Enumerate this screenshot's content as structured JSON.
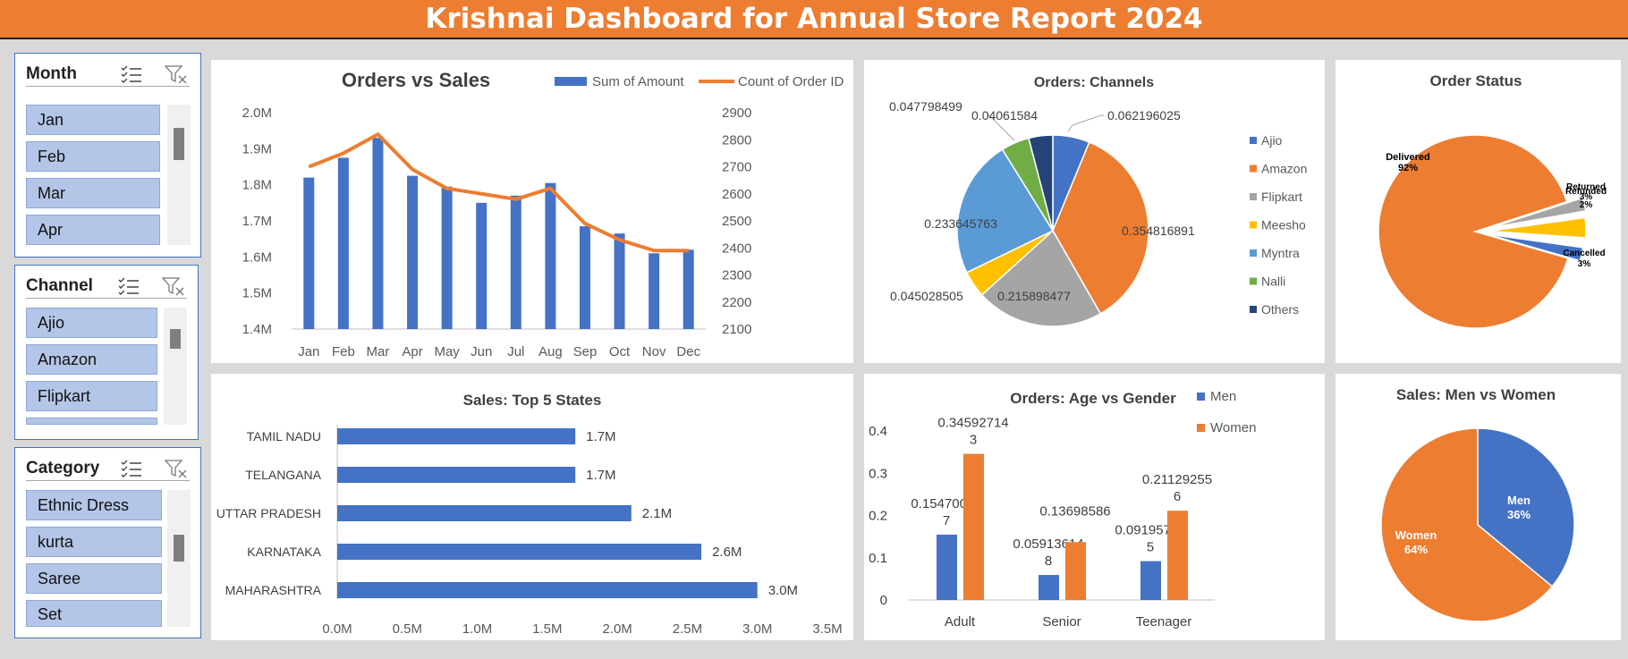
{
  "banner": {
    "title": "Krishnai Dashboard for Annual Store Report 2024"
  },
  "slicers": {
    "month": {
      "title": "Month",
      "items": [
        "Jan",
        "Feb",
        "Mar",
        "Apr"
      ]
    },
    "channel": {
      "title": "Channel",
      "items": [
        "Ajio",
        "Amazon",
        "Flipkart"
      ]
    },
    "category": {
      "title": "Category",
      "items": [
        "Ethnic Dress",
        "kurta",
        "Saree",
        "Set"
      ]
    }
  },
  "colors": {
    "blue": "#4472c4",
    "orange": "#ed7d31",
    "gray": "#a5a5a5",
    "gold": "#ffc000",
    "lightblue": "#5b9bd5",
    "green": "#70ad47",
    "navy": "#264478",
    "banner": "#ed7d31"
  },
  "chart_data": [
    {
      "id": "orders_vs_sales",
      "type": "bar+line",
      "title": "Orders vs Sales",
      "categories": [
        "Jan",
        "Feb",
        "Mar",
        "Apr",
        "May",
        "Jun",
        "Jul",
        "Aug",
        "Sep",
        "Oct",
        "Nov",
        "Dec"
      ],
      "series": [
        {
          "name": "Sum of Amount",
          "type": "bar",
          "axis": "left",
          "values": [
            1.82,
            1.875,
            1.93,
            1.825,
            1.795,
            1.75,
            1.77,
            1.805,
            1.685,
            1.665,
            1.61,
            1.62
          ]
        },
        {
          "name": "Count of Order ID",
          "type": "line",
          "axis": "right",
          "values": [
            2700,
            2750,
            2820,
            2690,
            2620,
            2600,
            2580,
            2620,
            2490,
            2430,
            2390,
            2390
          ]
        }
      ],
      "left_ticks": [
        "2.0M",
        "1.9M",
        "1.8M",
        "1.7M",
        "1.6M",
        "1.5M",
        "1.4M"
      ],
      "right_ticks": [
        "2900",
        "2800",
        "2700",
        "2600",
        "2500",
        "2400",
        "2300",
        "2200",
        "2100"
      ],
      "ylim_left": [
        1.4,
        2.0
      ],
      "ylim_right": [
        2100,
        2900
      ],
      "legend": "top-right"
    },
    {
      "id": "orders_channels",
      "type": "pie",
      "title": "Orders: Channels",
      "slices": [
        {
          "name": "Ajio",
          "value": 0.062196025,
          "label": "0.062196025"
        },
        {
          "name": "Amazon",
          "value": 0.354816891,
          "label": "0.354816891"
        },
        {
          "name": "Flipkart",
          "value": 0.215898477,
          "label": "0.215898477"
        },
        {
          "name": "Meesho",
          "value": 0.045028505,
          "label": "0.045028505"
        },
        {
          "name": "Myntra",
          "value": 0.233645763,
          "label": "0.233645763"
        },
        {
          "name": "Nalli",
          "value": 0.047798499,
          "label": "0.047798499"
        },
        {
          "name": "Others",
          "value": 0.04061584,
          "label": "0.04061584"
        }
      ],
      "legend": "right"
    },
    {
      "id": "order_status",
      "type": "pie",
      "title": "Order Status",
      "slices": [
        {
          "name": "Delivered",
          "value": 92,
          "label": "92%"
        },
        {
          "name": "Returned",
          "value": 3,
          "label": "3%"
        },
        {
          "name": "Refunded",
          "value": 2,
          "label": "2%"
        },
        {
          "name": "Cancelled",
          "value": 3,
          "label": "3%"
        }
      ]
    },
    {
      "id": "top5_states",
      "type": "bar",
      "orientation": "horizontal",
      "title": "Sales: Top 5 States",
      "categories": [
        "TAMIL NADU",
        "TELANGANA",
        "UTTAR PRADESH",
        "KARNATAKA",
        "MAHARASHTRA"
      ],
      "values": [
        1.7,
        1.7,
        2.1,
        2.6,
        3.0
      ],
      "value_labels": [
        "1.7M",
        "1.7M",
        "2.1M",
        "2.6M",
        "3.0M"
      ],
      "x_ticks": [
        "0.0M",
        "0.5M",
        "1.0M",
        "1.5M",
        "2.0M",
        "2.5M",
        "3.0M",
        "3.5M"
      ],
      "xlim": [
        0,
        3.5
      ]
    },
    {
      "id": "age_gender",
      "type": "bar",
      "title": "Orders: Age vs Gender",
      "categories": [
        "Adult",
        "Senior",
        "Teenager"
      ],
      "series": [
        {
          "name": "Men",
          "values": [
            0.154700937,
            0.059136148,
            0.091957355
          ],
          "labels": [
            [
              "0.15470093",
              "7"
            ],
            [
              "0.05913614",
              "8"
            ],
            [
              "0.09195735",
              "5"
            ]
          ]
        },
        {
          "name": "Women",
          "values": [
            0.345927143,
            0.13698586,
            0.211292556
          ],
          "labels": [
            [
              "0.34592714",
              "3"
            ],
            [
              "0.13698586",
              ""
            ],
            [
              "0.21129255",
              "6"
            ]
          ]
        }
      ],
      "y_ticks": [
        "0.4",
        "0.3",
        "0.2",
        "0.1",
        "0"
      ],
      "ylim": [
        0,
        0.4
      ],
      "legend": "top-right"
    },
    {
      "id": "men_women",
      "type": "pie",
      "title": "Sales: Men vs Women",
      "slices": [
        {
          "name": "Men",
          "value": 36,
          "label": "36%"
        },
        {
          "name": "Women",
          "value": 64,
          "label": "64%"
        }
      ]
    }
  ]
}
